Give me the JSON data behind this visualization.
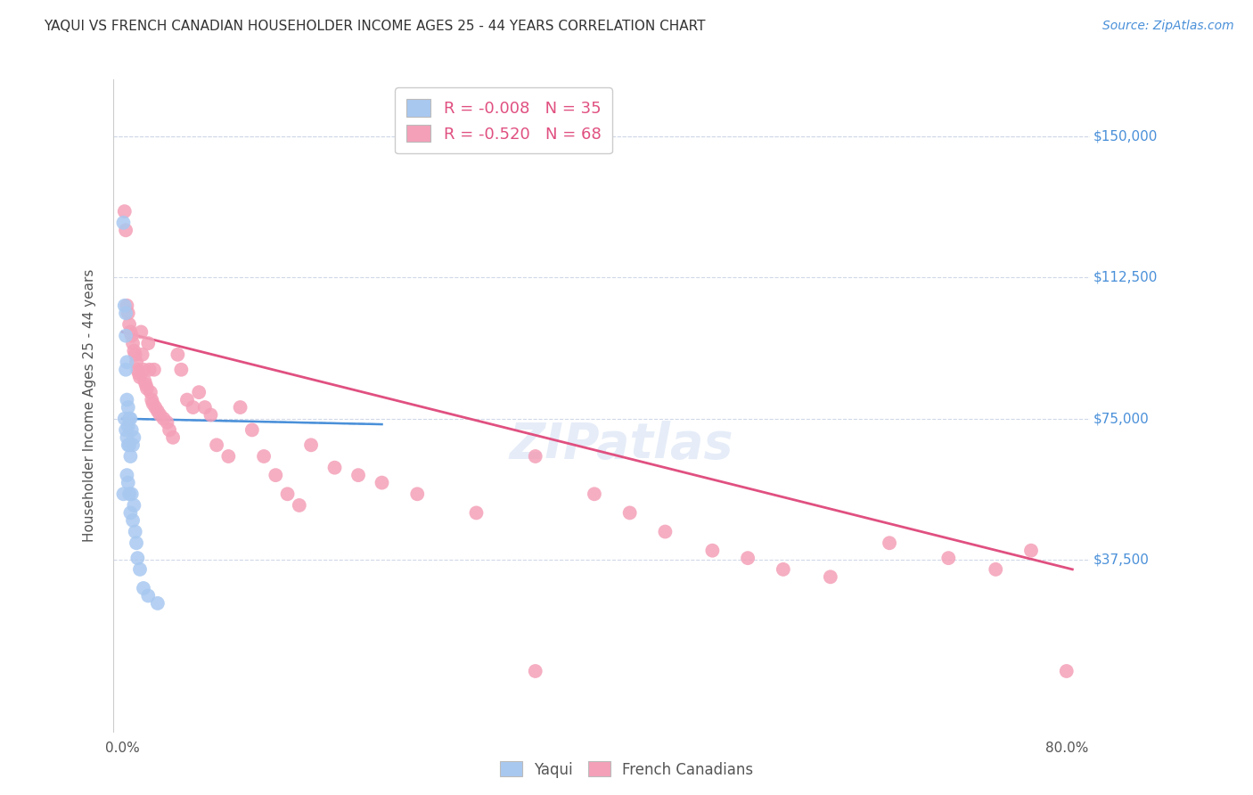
{
  "title": "YAQUI VS FRENCH CANADIAN HOUSEHOLDER INCOME AGES 25 - 44 YEARS CORRELATION CHART",
  "source": "Source: ZipAtlas.com",
  "ylabel": "Householder Income Ages 25 - 44 years",
  "ytick_labels": [
    "$37,500",
    "$75,000",
    "$112,500",
    "$150,000"
  ],
  "ytick_values": [
    37500,
    75000,
    112500,
    150000
  ],
  "ylim": [
    -8000,
    165000
  ],
  "xlim": [
    -0.008,
    0.82
  ],
  "yaqui_R": "-0.008",
  "yaqui_N": "35",
  "french_R": "-0.520",
  "french_N": "68",
  "yaqui_color": "#a8c8f0",
  "french_color": "#f4a0b8",
  "yaqui_line_color": "#4a90d9",
  "french_line_color": "#e05080",
  "ref_line_color": "#a0c0e8",
  "background_color": "#ffffff",
  "grid_color": "#d0d8e8",
  "title_color": "#333333",
  "ytick_color": "#4a90d9",
  "yaqui_scatter_x": [
    0.001,
    0.001,
    0.002,
    0.002,
    0.003,
    0.003,
    0.003,
    0.003,
    0.004,
    0.004,
    0.004,
    0.004,
    0.005,
    0.005,
    0.005,
    0.005,
    0.006,
    0.006,
    0.006,
    0.007,
    0.007,
    0.007,
    0.008,
    0.008,
    0.009,
    0.009,
    0.01,
    0.01,
    0.011,
    0.012,
    0.013,
    0.015,
    0.018,
    0.022,
    0.03
  ],
  "yaqui_scatter_y": [
    127000,
    55000,
    105000,
    75000,
    103000,
    97000,
    88000,
    72000,
    90000,
    80000,
    70000,
    60000,
    78000,
    73000,
    68000,
    58000,
    75000,
    68000,
    55000,
    75000,
    65000,
    50000,
    72000,
    55000,
    68000,
    48000,
    70000,
    52000,
    45000,
    42000,
    38000,
    35000,
    30000,
    28000,
    26000
  ],
  "french_scatter_x": [
    0.002,
    0.003,
    0.004,
    0.005,
    0.006,
    0.007,
    0.008,
    0.009,
    0.01,
    0.011,
    0.012,
    0.013,
    0.014,
    0.015,
    0.016,
    0.017,
    0.018,
    0.019,
    0.02,
    0.021,
    0.022,
    0.023,
    0.024,
    0.025,
    0.026,
    0.027,
    0.028,
    0.03,
    0.032,
    0.035,
    0.038,
    0.04,
    0.043,
    0.047,
    0.05,
    0.055,
    0.06,
    0.065,
    0.07,
    0.075,
    0.08,
    0.09,
    0.1,
    0.11,
    0.12,
    0.13,
    0.14,
    0.15,
    0.16,
    0.18,
    0.2,
    0.22,
    0.25,
    0.3,
    0.35,
    0.4,
    0.43,
    0.46,
    0.5,
    0.53,
    0.56,
    0.6,
    0.65,
    0.7,
    0.74,
    0.77,
    0.8,
    0.35
  ],
  "french_scatter_y": [
    130000,
    125000,
    105000,
    103000,
    100000,
    98000,
    97000,
    95000,
    93000,
    92000,
    90000,
    88000,
    87000,
    86000,
    98000,
    92000,
    88000,
    85000,
    84000,
    83000,
    95000,
    88000,
    82000,
    80000,
    79000,
    88000,
    78000,
    77000,
    76000,
    75000,
    74000,
    72000,
    70000,
    92000,
    88000,
    80000,
    78000,
    82000,
    78000,
    76000,
    68000,
    65000,
    78000,
    72000,
    65000,
    60000,
    55000,
    52000,
    68000,
    62000,
    60000,
    58000,
    55000,
    50000,
    65000,
    55000,
    50000,
    45000,
    40000,
    38000,
    35000,
    33000,
    42000,
    38000,
    35000,
    40000,
    8000,
    8000
  ],
  "yaqui_line_x": [
    0.0,
    0.22
  ],
  "yaqui_line_y": [
    75000,
    73500
  ],
  "french_line_x": [
    0.0,
    0.805
  ],
  "french_line_y": [
    98000,
    35000
  ],
  "ref_line_y": 72000
}
